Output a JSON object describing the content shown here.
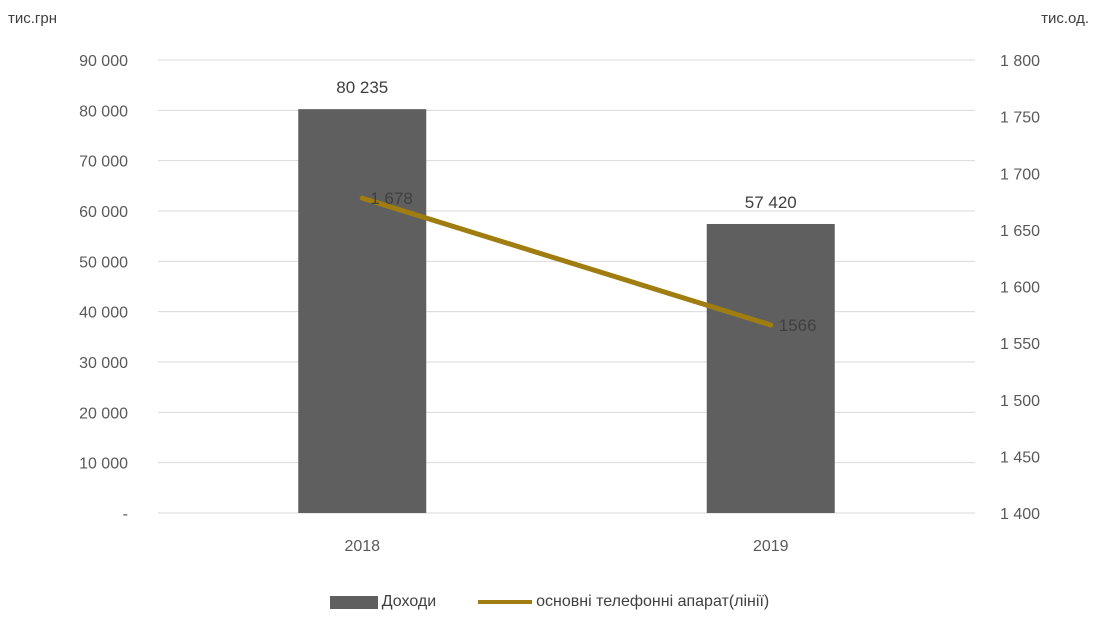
{
  "chart_data": {
    "type": "bar",
    "categories": [
      "2018",
      "2019"
    ],
    "series": [
      {
        "name": "Доходи",
        "kind": "bar",
        "axis": "left",
        "color": "#5f5f5f",
        "values": [
          80235,
          57420
        ],
        "labels": [
          "80 235",
          "57 420"
        ]
      },
      {
        "name": "основні телефонні апарат(лінії)",
        "kind": "line",
        "axis": "right",
        "color": "#a07d10",
        "values": [
          1678,
          1566
        ],
        "labels": [
          "1 678",
          "1566"
        ]
      }
    ],
    "y_left": {
      "unit": "тис.грн",
      "range": [
        0,
        90000
      ],
      "ticks": [
        "-",
        "10 000",
        "20 000",
        "30 000",
        "40 000",
        "50 000",
        "60 000",
        "70 000",
        "80 000",
        "90 000"
      ]
    },
    "y_right": {
      "unit": "тис.од.",
      "range": [
        1400,
        1800
      ],
      "ticks": [
        "1 400",
        "1 450",
        "1 500",
        "1 550",
        "1 600",
        "1 650",
        "1 700",
        "1 750",
        "1 800"
      ]
    },
    "grid": true,
    "legend_position": "bottom"
  }
}
